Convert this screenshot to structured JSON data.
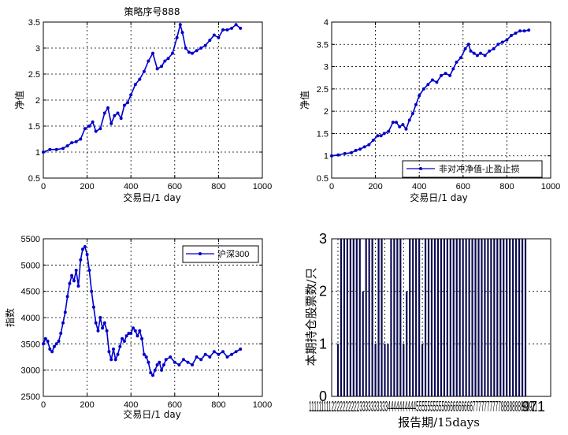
{
  "chart_data": [
    {
      "type": "line",
      "title": "策略序号888",
      "xlabel": "交易日/1 day",
      "ylabel": "净值",
      "xlim": [
        0,
        1000
      ],
      "ylim": [
        0.5,
        3.5
      ],
      "xticks": [
        "0",
        "200",
        "400",
        "600",
        "800",
        "1000"
      ],
      "yticks": [
        "0.5",
        "1",
        "1.5",
        "2",
        "2.5",
        "3",
        "3.5"
      ],
      "grid": true,
      "color": "#0000cc",
      "series": [
        {
          "x": [
            0,
            30,
            60,
            90,
            110,
            130,
            150,
            170,
            190,
            210,
            225,
            240,
            260,
            280,
            295,
            310,
            325,
            340,
            355,
            370,
            385,
            400,
            420,
            440,
            460,
            480,
            500,
            520,
            540,
            555,
            570,
            590,
            610,
            625,
            635,
            650,
            665,
            680,
            700,
            720,
            740,
            760,
            780,
            800,
            820,
            840,
            860,
            880,
            900
          ],
          "y": [
            1.0,
            1.05,
            1.05,
            1.07,
            1.12,
            1.18,
            1.2,
            1.25,
            1.45,
            1.5,
            1.58,
            1.4,
            1.45,
            1.75,
            1.85,
            1.55,
            1.7,
            1.75,
            1.65,
            1.9,
            1.95,
            2.1,
            2.3,
            2.4,
            2.55,
            2.75,
            2.9,
            2.6,
            2.65,
            2.75,
            2.8,
            2.9,
            3.2,
            3.45,
            3.3,
            3.0,
            2.92,
            2.9,
            2.95,
            3.0,
            3.05,
            3.15,
            3.25,
            3.2,
            3.35,
            3.35,
            3.38,
            3.45,
            3.38
          ]
        }
      ]
    },
    {
      "type": "line",
      "title": "",
      "xlabel": "交易日/1 day",
      "ylabel": "净值",
      "xlim": [
        0,
        1000
      ],
      "ylim": [
        0.5,
        4
      ],
      "xticks": [
        "0",
        "200",
        "400",
        "600",
        "800",
        "1000"
      ],
      "yticks": [
        "0.5",
        "1",
        "1.5",
        "2",
        "2.5",
        "3",
        "3.5",
        "4"
      ],
      "grid": true,
      "color": "#0000cc",
      "legend": "bottom-right",
      "series": [
        {
          "name": "非对冲净值-止盈止损",
          "x": [
            0,
            30,
            60,
            90,
            110,
            130,
            150,
            170,
            190,
            210,
            225,
            240,
            260,
            280,
            295,
            310,
            325,
            340,
            355,
            370,
            385,
            400,
            420,
            440,
            460,
            480,
            500,
            520,
            540,
            555,
            570,
            590,
            610,
            625,
            635,
            650,
            665,
            680,
            700,
            720,
            740,
            760,
            780,
            800,
            820,
            840,
            860,
            880,
            900
          ],
          "y": [
            1.0,
            1.02,
            1.05,
            1.07,
            1.12,
            1.15,
            1.2,
            1.25,
            1.35,
            1.45,
            1.45,
            1.5,
            1.55,
            1.75,
            1.75,
            1.65,
            1.7,
            1.6,
            1.8,
            1.95,
            2.15,
            2.35,
            2.5,
            2.6,
            2.7,
            2.65,
            2.8,
            2.85,
            2.8,
            2.95,
            3.1,
            3.2,
            3.4,
            3.5,
            3.35,
            3.3,
            3.25,
            3.3,
            3.25,
            3.35,
            3.4,
            3.5,
            3.55,
            3.6,
            3.7,
            3.75,
            3.8,
            3.8,
            3.82
          ]
        }
      ]
    },
    {
      "type": "line",
      "title": "",
      "xlabel": "交易日/1 day",
      "ylabel": "指数",
      "xlim": [
        0,
        1000
      ],
      "ylim": [
        2500,
        5500
      ],
      "xticks": [
        "0",
        "200",
        "400",
        "600",
        "800",
        "1000"
      ],
      "yticks": [
        "2500",
        "3000",
        "3500",
        "4000",
        "4500",
        "5000",
        "5500"
      ],
      "grid": true,
      "color": "#0000cc",
      "legend": "top-right",
      "series": [
        {
          "name": "沪深300",
          "x": [
            0,
            10,
            20,
            30,
            40,
            50,
            60,
            70,
            80,
            90,
            100,
            110,
            120,
            130,
            140,
            150,
            160,
            170,
            180,
            190,
            200,
            210,
            220,
            230,
            240,
            250,
            260,
            270,
            280,
            290,
            300,
            310,
            320,
            330,
            340,
            350,
            360,
            370,
            380,
            390,
            400,
            410,
            420,
            430,
            440,
            450,
            460,
            470,
            480,
            490,
            500,
            510,
            520,
            530,
            540,
            550,
            560,
            580,
            600,
            620,
            640,
            660,
            680,
            700,
            720,
            740,
            760,
            780,
            800,
            820,
            840,
            860,
            880,
            900
          ],
          "y": [
            3500,
            3600,
            3550,
            3400,
            3350,
            3450,
            3500,
            3550,
            3700,
            3900,
            4100,
            4400,
            4650,
            4800,
            4700,
            4900,
            4600,
            5100,
            5300,
            5350,
            5200,
            4900,
            4500,
            4200,
            3900,
            3750,
            4000,
            3800,
            3900,
            3750,
            3350,
            3200,
            3400,
            3200,
            3300,
            3450,
            3600,
            3550,
            3650,
            3700,
            3700,
            3800,
            3750,
            3650,
            3750,
            3600,
            3300,
            3250,
            3150,
            2950,
            2900,
            3000,
            3100,
            3150,
            3000,
            3100,
            3200,
            3250,
            3150,
            3100,
            3200,
            3150,
            3100,
            3250,
            3200,
            3300,
            3250,
            3350,
            3300,
            3350,
            3250,
            3300,
            3350,
            3400
          ]
        }
      ]
    },
    {
      "type": "bar",
      "title": "",
      "xlabel": "报告期/15days",
      "ylabel": "本期持仓股票数/只",
      "ylim": [
        0,
        3
      ],
      "yticks": [
        "0",
        "1",
        "2",
        "3"
      ],
      "xtick_text": "1111111112222222222333333333344444444445555555555666666666677777777778888888888911",
      "xtick_end": "971",
      "grid": true,
      "color": "#0a0a50",
      "categories": [
        "1",
        "2",
        "3",
        "4",
        "5",
        "6",
        "7",
        "8",
        "9",
        "10",
        "11",
        "12",
        "13",
        "14",
        "15",
        "16",
        "17",
        "18",
        "19",
        "20",
        "21",
        "22",
        "23",
        "24",
        "25",
        "26",
        "27",
        "28",
        "29",
        "30",
        "31",
        "32",
        "33",
        "34",
        "35",
        "36",
        "37",
        "38",
        "39",
        "40",
        "41",
        "42",
        "43",
        "44",
        "45",
        "46",
        "47",
        "48",
        "49",
        "50",
        "51",
        "52",
        "53",
        "54",
        "55",
        "56",
        "57",
        "58",
        "59",
        "60",
        "61"
      ],
      "values": [
        1,
        3,
        3,
        3,
        3,
        3,
        3,
        3,
        2,
        3,
        3,
        3,
        1,
        3,
        3,
        1,
        1,
        3,
        3,
        3,
        3,
        1,
        2,
        3,
        3,
        3,
        3,
        1,
        3,
        3,
        3,
        3,
        3,
        3,
        3,
        3,
        3,
        3,
        3,
        3,
        3,
        3,
        3,
        3,
        3,
        3,
        3,
        3,
        3,
        3,
        3,
        3,
        3,
        3,
        3,
        3,
        3,
        3,
        3,
        3,
        3
      ]
    }
  ]
}
